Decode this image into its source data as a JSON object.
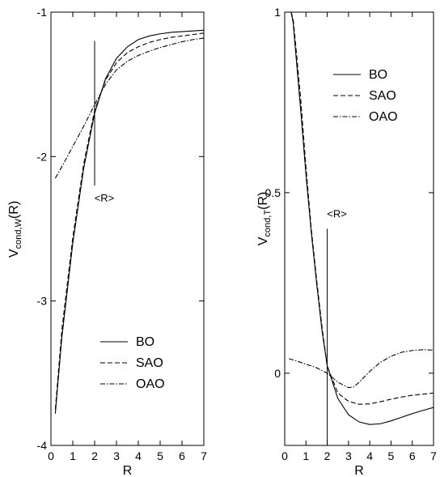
{
  "chart_data": [
    {
      "type": "line",
      "xlabel": "R",
      "ylabel_main": "V",
      "ylabel_sub": "cond,W",
      "ylabel_tail": "(R)",
      "xlim": [
        0,
        7
      ],
      "ylim": [
        -4,
        -1
      ],
      "xticks": [
        0,
        1,
        2,
        3,
        4,
        5,
        6,
        7
      ],
      "yticks": [
        -4,
        -3,
        -2,
        -1
      ],
      "grid": false,
      "legend_placement": "bottom-right",
      "legend": [
        "BO",
        "SAO",
        "OAO"
      ],
      "annotation": {
        "text": "<R>",
        "x": 2.0,
        "y_from": -1.2,
        "y_to": -2.2
      },
      "series": [
        {
          "name": "BO",
          "style": "solid",
          "x": [
            0.2,
            0.5,
            1.0,
            1.5,
            2.0,
            2.5,
            3.0,
            3.5,
            4.0,
            4.5,
            5.0,
            5.5,
            6.0,
            6.5,
            7.0
          ],
          "y": [
            -3.78,
            -3.25,
            -2.6,
            -2.08,
            -1.7,
            -1.46,
            -1.32,
            -1.24,
            -1.19,
            -1.165,
            -1.15,
            -1.14,
            -1.135,
            -1.13,
            -1.125
          ]
        },
        {
          "name": "SAO",
          "style": "dashed",
          "x": [
            0.2,
            0.5,
            1.0,
            1.5,
            2.0,
            2.5,
            3.0,
            3.5,
            4.0,
            4.5,
            5.0,
            5.5,
            6.0,
            6.5,
            7.0
          ],
          "y": [
            -3.75,
            -3.2,
            -2.56,
            -2.05,
            -1.68,
            -1.47,
            -1.35,
            -1.28,
            -1.24,
            -1.21,
            -1.19,
            -1.175,
            -1.165,
            -1.155,
            -1.145
          ]
        },
        {
          "name": "OAO",
          "style": "dashdot",
          "x": [
            0.2,
            0.5,
            1.0,
            1.5,
            2.0,
            2.5,
            3.0,
            3.5,
            4.0,
            4.5,
            5.0,
            5.5,
            6.0,
            6.5,
            7.0
          ],
          "y": [
            -2.15,
            -2.07,
            -1.93,
            -1.79,
            -1.64,
            -1.5,
            -1.4,
            -1.34,
            -1.3,
            -1.27,
            -1.245,
            -1.225,
            -1.205,
            -1.19,
            -1.18
          ]
        }
      ]
    },
    {
      "type": "line",
      "xlabel": "R",
      "ylabel_main": "V",
      "ylabel_sub": "cond,T",
      "ylabel_tail": "(R)",
      "xlim": [
        0,
        7
      ],
      "ylim": [
        -0.2,
        1
      ],
      "xticks": [
        0,
        1,
        2,
        3,
        4,
        5,
        6,
        7
      ],
      "yticks": [
        0,
        0.5,
        1
      ],
      "ytick_labels": [
        "0",
        "0.5",
        "1"
      ],
      "grid": false,
      "legend_placement": "top-right",
      "legend": [
        "BO",
        "SAO",
        "OAO"
      ],
      "annotation": {
        "text": "<R>",
        "x": 2.0,
        "y_from": 0.4,
        "y_to": -0.2
      },
      "series": [
        {
          "name": "BO",
          "style": "solid",
          "x": [
            0.3,
            0.4,
            0.5,
            0.75,
            1.0,
            1.25,
            1.5,
            1.75,
            2.0,
            2.5,
            3.0,
            3.5,
            4.0,
            4.5,
            5.0,
            5.5,
            6.0,
            6.5,
            7.0
          ],
          "y": [
            1.0,
            0.97,
            0.9,
            0.73,
            0.55,
            0.39,
            0.25,
            0.12,
            0.02,
            -0.07,
            -0.115,
            -0.135,
            -0.142,
            -0.14,
            -0.132,
            -0.122,
            -0.112,
            -0.103,
            -0.095
          ]
        },
        {
          "name": "SAO",
          "style": "dashed",
          "x": [
            0.3,
            0.4,
            0.5,
            0.75,
            1.0,
            1.25,
            1.5,
            1.75,
            2.0,
            2.5,
            3.0,
            3.5,
            4.0,
            4.5,
            5.0,
            5.5,
            6.0,
            6.5,
            7.0
          ],
          "y": [
            1.0,
            0.98,
            0.92,
            0.76,
            0.57,
            0.4,
            0.26,
            0.13,
            0.02,
            -0.055,
            -0.078,
            -0.086,
            -0.085,
            -0.079,
            -0.072,
            -0.066,
            -0.061,
            -0.058,
            -0.055
          ]
        },
        {
          "name": "OAO",
          "style": "dashdot",
          "x": [
            0.2,
            0.5,
            1.0,
            1.5,
            2.0,
            2.5,
            3.0,
            3.25,
            3.5,
            4.0,
            4.5,
            5.0,
            5.5,
            6.0,
            6.5,
            7.0
          ],
          "y": [
            0.04,
            0.035,
            0.025,
            0.015,
            0.0,
            -0.025,
            -0.04,
            -0.038,
            -0.025,
            0.005,
            0.03,
            0.047,
            0.058,
            0.063,
            0.065,
            0.064
          ]
        }
      ]
    }
  ]
}
